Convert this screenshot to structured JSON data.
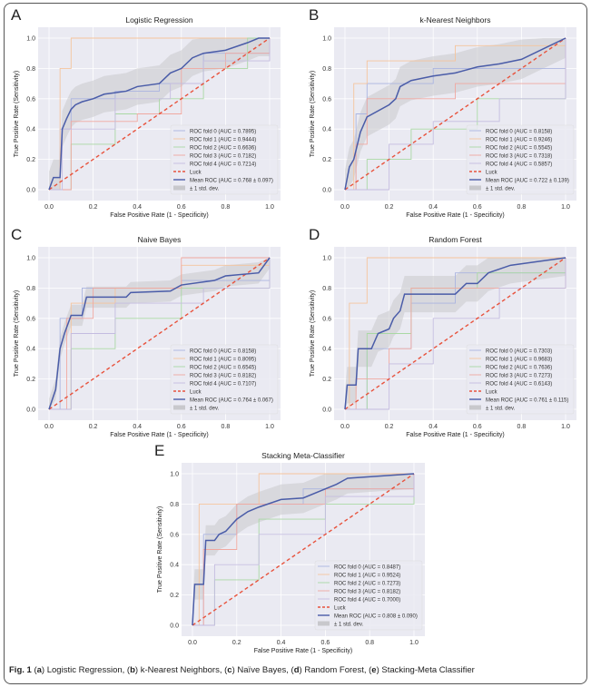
{
  "caption": {
    "fig": "Fig. 1",
    "parts": [
      [
        "a",
        "Logistic Regression"
      ],
      [
        "b",
        "k-Nearest Neighbors"
      ],
      [
        "c",
        "Naïve Bayes"
      ],
      [
        "d",
        "Random Forest"
      ],
      [
        "e",
        "Stacking-Meta Classifier"
      ]
    ]
  },
  "colors": {
    "bg": "#eaeaf2",
    "folds": [
      "#aab4e0",
      "#f5c49c",
      "#a9d8a4",
      "#f0a8a0",
      "#c4bce0"
    ],
    "mean": "#4a5ca8",
    "luck": "#e8523c",
    "band": "#c8c8cc"
  },
  "chart_data": [
    {
      "type": "line",
      "panel": "A",
      "title": "Logistic Regression",
      "xlabel": "False Positive Rate (1 - Specificity)",
      "ylabel": "True Positive Rate (Sensitivity)",
      "xlim": [
        0,
        1
      ],
      "ylim": [
        0,
        1
      ],
      "ticks": [
        "0.0",
        "0.2",
        "0.4",
        "0.6",
        "0.8",
        "1.0"
      ],
      "legend_pos": "bottom-right",
      "folds": [
        {
          "name": "ROC fold 0 (AUC = 0.7895)",
          "pts": [
            [
              0,
              0
            ],
            [
              0.05,
              0.4
            ],
            [
              0.1,
              0.6
            ],
            [
              0.3,
              0.65
            ],
            [
              0.5,
              0.7
            ],
            [
              0.7,
              0.9
            ],
            [
              1,
              1
            ]
          ]
        },
        {
          "name": "ROC fold 1 (AUC = 0.9444)",
          "pts": [
            [
              0,
              0
            ],
            [
              0.05,
              0.8
            ],
            [
              0.1,
              1
            ],
            [
              1,
              1
            ]
          ]
        },
        {
          "name": "ROC fold 2 (AUC = 0.6636)",
          "pts": [
            [
              0,
              0
            ],
            [
              0.1,
              0.3
            ],
            [
              0.3,
              0.5
            ],
            [
              0.5,
              0.6
            ],
            [
              0.7,
              0.8
            ],
            [
              0.9,
              1
            ],
            [
              1,
              1
            ]
          ]
        },
        {
          "name": "ROC fold 3 (AUC = 0.7182)",
          "pts": [
            [
              0,
              0
            ],
            [
              0.1,
              0.45
            ],
            [
              0.4,
              0.5
            ],
            [
              0.6,
              0.8
            ],
            [
              0.8,
              0.9
            ],
            [
              1,
              1
            ]
          ]
        },
        {
          "name": "ROC fold 4 (AUC = 0.7214)",
          "pts": [
            [
              0,
              0
            ],
            [
              0.06,
              0.4
            ],
            [
              0.3,
              0.6
            ],
            [
              0.55,
              0.7
            ],
            [
              0.7,
              0.85
            ],
            [
              1,
              1
            ]
          ]
        }
      ],
      "luck": "Luck",
      "mean": {
        "name": "Mean ROC (AUC = 0.768 ± 0.097)",
        "pts": [
          [
            0,
            0
          ],
          [
            0.02,
            0.08
          ],
          [
            0.05,
            0.08
          ],
          [
            0.06,
            0.4
          ],
          [
            0.08,
            0.47
          ],
          [
            0.1,
            0.53
          ],
          [
            0.12,
            0.56
          ],
          [
            0.15,
            0.58
          ],
          [
            0.2,
            0.6
          ],
          [
            0.25,
            0.63
          ],
          [
            0.35,
            0.65
          ],
          [
            0.4,
            0.68
          ],
          [
            0.5,
            0.7
          ],
          [
            0.55,
            0.77
          ],
          [
            0.6,
            0.8
          ],
          [
            0.65,
            0.87
          ],
          [
            0.7,
            0.9
          ],
          [
            0.8,
            0.92
          ],
          [
            0.9,
            0.97
          ],
          [
            0.95,
            1
          ],
          [
            1,
            1
          ]
        ]
      },
      "std": 0.12,
      "band": "± 1 std. dev."
    },
    {
      "type": "line",
      "panel": "B",
      "title": "k-Nearest Neighbors",
      "xlabel": "False Positive Rate (1 - Specificity)",
      "ylabel": "True Positive Rate (Sensitivity)",
      "xlim": [
        0,
        1
      ],
      "ylim": [
        0,
        1
      ],
      "ticks": [
        "0.0",
        "0.2",
        "0.4",
        "0.6",
        "0.8",
        "1.0"
      ],
      "legend_pos": "bottom-right",
      "folds": [
        {
          "name": "ROC fold 0 (AUC = 0.8158)",
          "pts": [
            [
              0,
              0
            ],
            [
              0.05,
              0.5
            ],
            [
              0.1,
              0.7
            ],
            [
              0.4,
              0.8
            ],
            [
              1,
              1
            ]
          ]
        },
        {
          "name": "ROC fold 1 (AUC = 0.9246)",
          "pts": [
            [
              0,
              0
            ],
            [
              0.04,
              0.7
            ],
            [
              0.1,
              0.85
            ],
            [
              0.5,
              0.95
            ],
            [
              1,
              1
            ]
          ]
        },
        {
          "name": "ROC fold 2 (AUC = 0.5545)",
          "pts": [
            [
              0,
              0
            ],
            [
              0.1,
              0.2
            ],
            [
              0.3,
              0.4
            ],
            [
              0.6,
              0.6
            ],
            [
              1,
              1
            ]
          ]
        },
        {
          "name": "ROC fold 3 (AUC = 0.7318)",
          "pts": [
            [
              0,
              0
            ],
            [
              0.05,
              0.3
            ],
            [
              0.1,
              0.6
            ],
            [
              0.5,
              0.7
            ],
            [
              1,
              1
            ]
          ]
        },
        {
          "name": "ROC fold 4 (AUC = 0.5857)",
          "pts": [
            [
              0,
              0
            ],
            [
              0.2,
              0.3
            ],
            [
              0.4,
              0.45
            ],
            [
              0.7,
              0.6
            ],
            [
              1,
              1
            ]
          ]
        }
      ],
      "luck": "Luck",
      "mean": {
        "name": "Mean ROC (AUC = 0.722 ± 0.139)",
        "pts": [
          [
            0,
            0
          ],
          [
            0.02,
            0.15
          ],
          [
            0.04,
            0.2
          ],
          [
            0.07,
            0.38
          ],
          [
            0.1,
            0.48
          ],
          [
            0.2,
            0.56
          ],
          [
            0.23,
            0.6
          ],
          [
            0.25,
            0.68
          ],
          [
            0.3,
            0.72
          ],
          [
            0.4,
            0.75
          ],
          [
            0.5,
            0.77
          ],
          [
            0.6,
            0.81
          ],
          [
            0.7,
            0.83
          ],
          [
            0.8,
            0.86
          ],
          [
            0.9,
            0.93
          ],
          [
            1,
            1
          ]
        ]
      },
      "std": 0.13,
      "band": "± 1 std. dev."
    },
    {
      "type": "line",
      "panel": "C",
      "title": "Naive Bayes",
      "xlabel": "False Positive Rate (1 - Specificity)",
      "ylabel": "True Positive Rate (Sensitivity)",
      "xlim": [
        0,
        1
      ],
      "ylim": [
        0,
        1
      ],
      "ticks": [
        "0.0",
        "0.2",
        "0.4",
        "0.6",
        "0.8",
        "1.0"
      ],
      "legend_pos": "bottom-right",
      "folds": [
        {
          "name": "ROC fold 0 (AUC = 0.8158)",
          "pts": [
            [
              0,
              0
            ],
            [
              0.05,
              0.6
            ],
            [
              0.15,
              0.8
            ],
            [
              0.6,
              0.85
            ],
            [
              1,
              1
            ]
          ]
        },
        {
          "name": "ROC fold 1 (AUC = 0.8095)",
          "pts": [
            [
              0,
              0
            ],
            [
              0.1,
              0.7
            ],
            [
              0.3,
              0.8
            ],
            [
              0.6,
              0.95
            ],
            [
              1,
              1
            ]
          ]
        },
        {
          "name": "ROC fold 2 (AUC = 0.6545)",
          "pts": [
            [
              0,
              0
            ],
            [
              0.1,
              0.4
            ],
            [
              0.3,
              0.6
            ],
            [
              0.6,
              0.8
            ],
            [
              1,
              1
            ]
          ]
        },
        {
          "name": "ROC fold 3 (AUC = 0.8182)",
          "pts": [
            [
              0,
              0
            ],
            [
              0.08,
              0.6
            ],
            [
              0.2,
              0.8
            ],
            [
              0.6,
              1
            ],
            [
              1,
              1
            ]
          ]
        },
        {
          "name": "ROC fold 4 (AUC = 0.7107)",
          "pts": [
            [
              0,
              0
            ],
            [
              0.1,
              0.5
            ],
            [
              0.3,
              0.7
            ],
            [
              0.7,
              0.8
            ],
            [
              1,
              1
            ]
          ]
        }
      ],
      "luck": "Luck",
      "mean": {
        "name": "Mean ROC (AUC = 0.764 ± 0.067)",
        "pts": [
          [
            0,
            0
          ],
          [
            0.03,
            0.13
          ],
          [
            0.05,
            0.4
          ],
          [
            0.07,
            0.5
          ],
          [
            0.1,
            0.62
          ],
          [
            0.15,
            0.62
          ],
          [
            0.17,
            0.74
          ],
          [
            0.35,
            0.74
          ],
          [
            0.37,
            0.77
          ],
          [
            0.55,
            0.78
          ],
          [
            0.6,
            0.82
          ],
          [
            0.75,
            0.85
          ],
          [
            0.8,
            0.88
          ],
          [
            0.95,
            0.9
          ],
          [
            1,
            1
          ]
        ]
      },
      "std": 0.07,
      "band": "± 1 std. dev."
    },
    {
      "type": "line",
      "panel": "D",
      "title": "Random Forest",
      "xlabel": "False Positive Rate (1 - Specificity)",
      "ylabel": "True Positive Rate (Sensitivity)",
      "xlim": [
        0,
        1
      ],
      "ylim": [
        0,
        1
      ],
      "ticks": [
        "0.0",
        "0.2",
        "0.4",
        "0.6",
        "0.8",
        "1.0"
      ],
      "legend_pos": "bottom-right",
      "folds": [
        {
          "name": "ROC fold 0 (AUC = 0.7303)",
          "pts": [
            [
              0,
              0
            ],
            [
              0.1,
              0.4
            ],
            [
              0.3,
              0.7
            ],
            [
              0.5,
              0.9
            ],
            [
              1,
              1
            ]
          ]
        },
        {
          "name": "ROC fold 1 (AUC = 0.9683)",
          "pts": [
            [
              0,
              0
            ],
            [
              0.02,
              0.7
            ],
            [
              0.1,
              1
            ],
            [
              1,
              1
            ]
          ]
        },
        {
          "name": "ROC fold 2 (AUC = 0.7636)",
          "pts": [
            [
              0,
              0
            ],
            [
              0.1,
              0.5
            ],
            [
              0.3,
              0.8
            ],
            [
              0.6,
              0.9
            ],
            [
              1,
              1
            ]
          ]
        },
        {
          "name": "ROC fold 3 (AUC = 0.7273)",
          "pts": [
            [
              0,
              0
            ],
            [
              0.05,
              0.2
            ],
            [
              0.2,
              0.4
            ],
            [
              0.3,
              0.8
            ],
            [
              1,
              1
            ]
          ]
        },
        {
          "name": "ROC fold 4 (AUC = 0.6143)",
          "pts": [
            [
              0,
              0
            ],
            [
              0.2,
              0.3
            ],
            [
              0.4,
              0.6
            ],
            [
              0.7,
              0.8
            ],
            [
              1,
              1
            ]
          ]
        }
      ],
      "luck": "Luck",
      "mean": {
        "name": "Mean ROC (AUC = 0.761 ± 0.115)",
        "pts": [
          [
            0,
            0
          ],
          [
            0.01,
            0.16
          ],
          [
            0.05,
            0.16
          ],
          [
            0.06,
            0.4
          ],
          [
            0.12,
            0.4
          ],
          [
            0.15,
            0.5
          ],
          [
            0.2,
            0.53
          ],
          [
            0.22,
            0.6
          ],
          [
            0.25,
            0.65
          ],
          [
            0.27,
            0.76
          ],
          [
            0.5,
            0.76
          ],
          [
            0.55,
            0.83
          ],
          [
            0.6,
            0.83
          ],
          [
            0.65,
            0.9
          ],
          [
            0.75,
            0.95
          ],
          [
            0.85,
            0.97
          ],
          [
            1,
            1
          ]
        ]
      },
      "std": 0.12,
      "band": "± 1 std. dev."
    },
    {
      "type": "line",
      "panel": "E",
      "title": "Stacking Meta-Classifier",
      "xlabel": "False Positive Rate (1 - Specificity)",
      "ylabel": "True Positive Rate (Sensitivity)",
      "xlim": [
        0,
        1
      ],
      "ylim": [
        0,
        1
      ],
      "ticks": [
        "0.0",
        "0.2",
        "0.4",
        "0.6",
        "0.8",
        "1.0"
      ],
      "legend_pos": "bottom-right",
      "folds": [
        {
          "name": "ROC fold 0 (AUC = 0.8487)",
          "pts": [
            [
              0,
              0
            ],
            [
              0.05,
              0.6
            ],
            [
              0.2,
              0.8
            ],
            [
              0.5,
              0.9
            ],
            [
              1,
              1
            ]
          ]
        },
        {
          "name": "ROC fold 1 (AUC = 0.9524)",
          "pts": [
            [
              0,
              0
            ],
            [
              0.03,
              0.8
            ],
            [
              0.3,
              1
            ],
            [
              1,
              1
            ]
          ]
        },
        {
          "name": "ROC fold 2 (AUC = 0.7273)",
          "pts": [
            [
              0,
              0
            ],
            [
              0.1,
              0.3
            ],
            [
              0.3,
              0.7
            ],
            [
              0.6,
              0.8
            ],
            [
              1,
              1
            ]
          ]
        },
        {
          "name": "ROC fold 3 (AUC = 0.8182)",
          "pts": [
            [
              0,
              0
            ],
            [
              0.05,
              0.5
            ],
            [
              0.2,
              0.8
            ],
            [
              0.6,
              0.9
            ],
            [
              1,
              1
            ]
          ]
        },
        {
          "name": "ROC fold 4 (AUC = 0.7000)",
          "pts": [
            [
              0,
              0
            ],
            [
              0.1,
              0.4
            ],
            [
              0.3,
              0.6
            ],
            [
              0.6,
              0.85
            ],
            [
              1,
              1
            ]
          ]
        }
      ],
      "luck": "Luck",
      "mean": {
        "name": "Mean ROC (AUC = 0.808 ± 0.090)",
        "pts": [
          [
            0,
            0
          ],
          [
            0.01,
            0.27
          ],
          [
            0.05,
            0.27
          ],
          [
            0.06,
            0.56
          ],
          [
            0.1,
            0.56
          ],
          [
            0.12,
            0.6
          ],
          [
            0.15,
            0.62
          ],
          [
            0.2,
            0.7
          ],
          [
            0.25,
            0.75
          ],
          [
            0.3,
            0.78
          ],
          [
            0.4,
            0.83
          ],
          [
            0.5,
            0.84
          ],
          [
            0.6,
            0.9
          ],
          [
            0.65,
            0.93
          ],
          [
            0.7,
            0.97
          ],
          [
            1,
            1
          ]
        ]
      },
      "std": 0.1,
      "band": "± 1 std. dev."
    }
  ]
}
